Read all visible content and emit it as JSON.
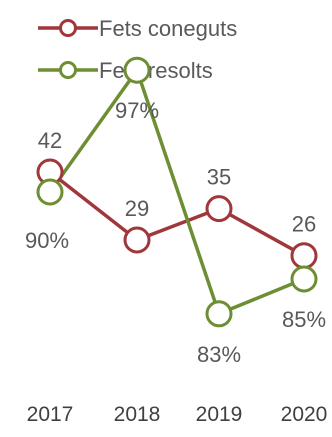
{
  "chart_data": {
    "type": "line",
    "title": "",
    "xlabel": "",
    "ylabel": "",
    "categories": [
      "2017",
      "2018",
      "2019",
      "2020"
    ],
    "series": [
      {
        "name": "Fets coneguts",
        "values": [
          42,
          29,
          35,
          26
        ],
        "labels": [
          "42",
          "29",
          "35",
          "26"
        ],
        "color": "#A0373A"
      },
      {
        "name": "Fets resolts",
        "values": [
          90,
          97,
          83,
          85
        ],
        "labels": [
          "90%",
          "97%",
          "83%",
          "85%"
        ],
        "color": "#6E8E33"
      }
    ],
    "grid": false,
    "legend": "top-left",
    "marker": "hollow-circle"
  }
}
